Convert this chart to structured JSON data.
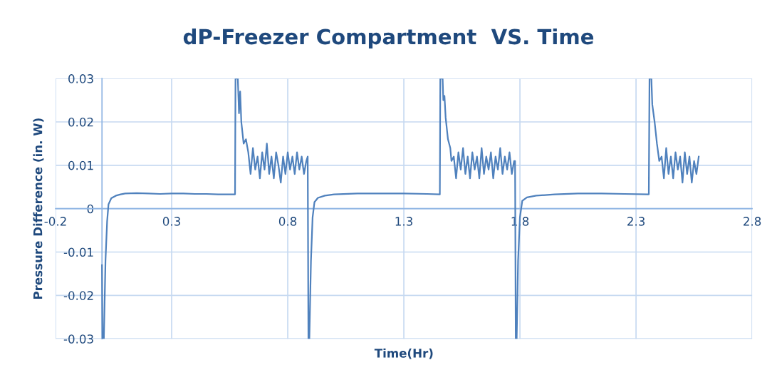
{
  "chart_data": {
    "type": "line",
    "title": "dP-Freezer Compartment  VS. Time",
    "xlabel": "Time(Hr)",
    "ylabel": "Pressure Difference (in. W)",
    "xlim": [
      -0.2,
      2.8
    ],
    "xticks": [
      -0.2,
      0.3,
      0.8,
      1.3,
      1.8,
      2.3,
      2.8
    ],
    "ylim": [
      -0.03,
      0.03
    ],
    "yticks": [
      -0.03,
      -0.02,
      -0.01,
      0,
      0.01,
      0.02,
      0.03
    ],
    "grid": true,
    "series": [
      {
        "color": "#4f81bd",
        "x": [
          0,
          0.002,
          0.008,
          0.015,
          0.022,
          0.028,
          0.04,
          0.06,
          0.08,
          0.1,
          0.15,
          0.2,
          0.25,
          0.3,
          0.35,
          0.4,
          0.45,
          0.5,
          0.55,
          0.573,
          0.575,
          0.585,
          0.59,
          0.595,
          0.6,
          0.61,
          0.62,
          0.63,
          0.64,
          0.65,
          0.66,
          0.67,
          0.68,
          0.69,
          0.7,
          0.71,
          0.72,
          0.73,
          0.74,
          0.75,
          0.76,
          0.77,
          0.78,
          0.79,
          0.8,
          0.81,
          0.82,
          0.83,
          0.84,
          0.85,
          0.86,
          0.87,
          0.88,
          0.886,
          0.889,
          0.893,
          0.9,
          0.907,
          0.915,
          0.93,
          0.96,
          1.0,
          1.1,
          1.2,
          1.3,
          1.4,
          1.455,
          1.457,
          1.467,
          1.47,
          1.475,
          1.48,
          1.49,
          1.5,
          1.505,
          1.515,
          1.525,
          1.535,
          1.545,
          1.555,
          1.565,
          1.575,
          1.585,
          1.595,
          1.605,
          1.615,
          1.625,
          1.635,
          1.645,
          1.655,
          1.665,
          1.675,
          1.685,
          1.695,
          1.705,
          1.715,
          1.725,
          1.735,
          1.745,
          1.755,
          1.765,
          1.775,
          1.779,
          1.782,
          1.786,
          1.792,
          1.8,
          1.81,
          1.83,
          1.87,
          1.95,
          2.05,
          2.15,
          2.25,
          2.355,
          2.358,
          2.366,
          2.37,
          2.38,
          2.39,
          2.4,
          2.41,
          2.42,
          2.43,
          2.44,
          2.45,
          2.46,
          2.47,
          2.48,
          2.49,
          2.5,
          2.51,
          2.52,
          2.53,
          2.54,
          2.55,
          2.56,
          2.57
        ],
        "values": [
          -0.013,
          -0.03,
          -0.03,
          -0.012,
          -0.003,
          0.001,
          0.0024,
          0.003,
          0.0033,
          0.0035,
          0.0036,
          0.0035,
          0.0034,
          0.0035,
          0.0035,
          0.0034,
          0.0034,
          0.0033,
          0.0033,
          0.0033,
          0.03,
          0.03,
          0.022,
          0.027,
          0.02,
          0.015,
          0.016,
          0.013,
          0.008,
          0.014,
          0.009,
          0.012,
          0.007,
          0.013,
          0.009,
          0.015,
          0.008,
          0.012,
          0.007,
          0.013,
          0.01,
          0.006,
          0.012,
          0.008,
          0.013,
          0.009,
          0.012,
          0.008,
          0.013,
          0.009,
          0.012,
          0.008,
          0.011,
          0.012,
          -0.03,
          -0.03,
          -0.012,
          -0.002,
          0.0015,
          0.0025,
          0.003,
          0.0033,
          0.0035,
          0.0035,
          0.0035,
          0.0034,
          0.0033,
          0.03,
          0.03,
          0.025,
          0.026,
          0.021,
          0.016,
          0.014,
          0.011,
          0.012,
          0.007,
          0.013,
          0.009,
          0.014,
          0.008,
          0.012,
          0.007,
          0.013,
          0.009,
          0.012,
          0.007,
          0.014,
          0.008,
          0.012,
          0.009,
          0.013,
          0.007,
          0.012,
          0.009,
          0.014,
          0.008,
          0.012,
          0.009,
          0.013,
          0.008,
          0.011,
          0.011,
          -0.03,
          -0.03,
          -0.012,
          -0.002,
          0.0018,
          0.0026,
          0.003,
          0.0033,
          0.0035,
          0.0035,
          0.0034,
          0.0033,
          0.03,
          0.03,
          0.024,
          0.02,
          0.015,
          0.011,
          0.012,
          0.007,
          0.014,
          0.008,
          0.012,
          0.007,
          0.013,
          0.009,
          0.012,
          0.006,
          0.013,
          0.008,
          0.012,
          0.006,
          0.011,
          0.008,
          0.012
        ]
      }
    ]
  }
}
